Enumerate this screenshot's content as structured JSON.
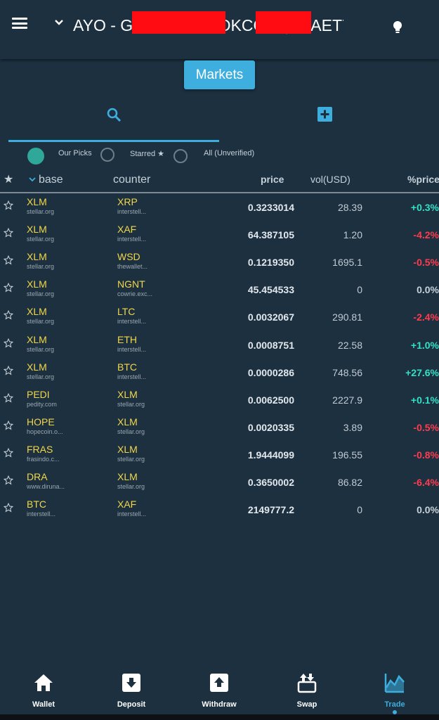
{
  "header": {
    "account_title": "AYO - GBS3TIFB3YOKCGDQ5UAET7W",
    "redaction_color": "#ff0b12"
  },
  "markets_button": "Markets",
  "tabs": [
    {
      "icon": "search-icon",
      "active": true
    },
    {
      "icon": "add-square-icon",
      "active": false
    }
  ],
  "filters": [
    {
      "label": "Our Picks",
      "selected": true
    },
    {
      "label": "Starred ★",
      "selected": false
    },
    {
      "label": "All (Unverified)",
      "selected": false
    }
  ],
  "columns": {
    "star": "★",
    "base": "base",
    "counter": "counter",
    "price": "price",
    "vol": "vol(USD)",
    "pct": "%price"
  },
  "colors": {
    "accent": "#3daede",
    "asset": "#f2d74a",
    "positive": "#35e0c6",
    "negative": "#ff3b4e",
    "neutral": "#c7d1d8",
    "selected_filter": "#2fa89a"
  },
  "rows": [
    {
      "base": "XLM",
      "base_domain": "stellar.org",
      "counter": "XRP",
      "counter_domain": "interstell...",
      "price": "0.3233014",
      "vol": "28.39",
      "pct": "+0.3%",
      "trend": "positive"
    },
    {
      "base": "XLM",
      "base_domain": "stellar.org",
      "counter": "XAF",
      "counter_domain": "interstell...",
      "price": "64.387105",
      "vol": "1.20",
      "pct": "-4.2%",
      "trend": "negative"
    },
    {
      "base": "XLM",
      "base_domain": "stellar.org",
      "counter": "WSD",
      "counter_domain": "thewallet...",
      "price": "0.1219350",
      "vol": "1695.1",
      "pct": "-0.5%",
      "trend": "negative"
    },
    {
      "base": "XLM",
      "base_domain": "stellar.org",
      "counter": "NGNT",
      "counter_domain": "cowrie.exc...",
      "price": "45.454533",
      "vol": "0",
      "pct": "0.0%",
      "trend": "neutral"
    },
    {
      "base": "XLM",
      "base_domain": "stellar.org",
      "counter": "LTC",
      "counter_domain": "interstell...",
      "price": "0.0032067",
      "vol": "290.81",
      "pct": "-2.4%",
      "trend": "negative"
    },
    {
      "base": "XLM",
      "base_domain": "stellar.org",
      "counter": "ETH",
      "counter_domain": "interstell...",
      "price": "0.0008751",
      "vol": "22.58",
      "pct": "+1.0%",
      "trend": "positive"
    },
    {
      "base": "XLM",
      "base_domain": "stellar.org",
      "counter": "BTC",
      "counter_domain": "interstell...",
      "price": "0.0000286",
      "vol": "748.56",
      "pct": "+27.6%",
      "trend": "positive"
    },
    {
      "base": "PEDI",
      "base_domain": "pedity.com",
      "counter": "XLM",
      "counter_domain": "stellar.org",
      "price": "0.0062500",
      "vol": "2227.9",
      "pct": "+0.1%",
      "trend": "positive"
    },
    {
      "base": "HOPE",
      "base_domain": "hopecoin.o...",
      "counter": "XLM",
      "counter_domain": "stellar.org",
      "price": "0.0020335",
      "vol": "3.89",
      "pct": "-0.5%",
      "trend": "negative"
    },
    {
      "base": "FRAS",
      "base_domain": "frasindo.c...",
      "counter": "XLM",
      "counter_domain": "stellar.org",
      "price": "1.9444099",
      "vol": "196.55",
      "pct": "-0.8%",
      "trend": "negative"
    },
    {
      "base": "DRA",
      "base_domain": "www.diruna...",
      "counter": "XLM",
      "counter_domain": "stellar.org",
      "price": "0.3650002",
      "vol": "86.82",
      "pct": "-6.4%",
      "trend": "negative"
    },
    {
      "base": "BTC",
      "base_domain": "interstell...",
      "counter": "XAF",
      "counter_domain": "interstell...",
      "price": "2149777.2",
      "vol": "0",
      "pct": "0.0%",
      "trend": "neutral"
    }
  ],
  "bottom_nav": [
    {
      "label": "Wallet",
      "icon": "home-icon",
      "active": false
    },
    {
      "label": "Deposit",
      "icon": "deposit-icon",
      "active": false
    },
    {
      "label": "Withdraw",
      "icon": "withdraw-icon",
      "active": false
    },
    {
      "label": "Swap",
      "icon": "swap-icon",
      "active": false
    },
    {
      "label": "Trade",
      "icon": "trade-chart-icon",
      "active": true
    }
  ]
}
